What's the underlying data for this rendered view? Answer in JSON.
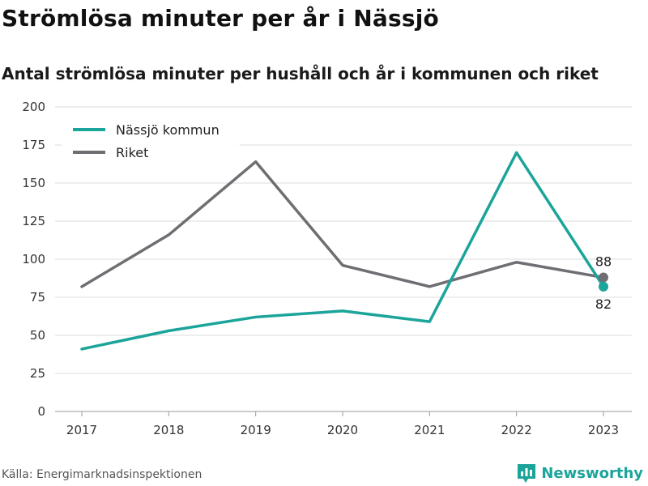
{
  "header": {
    "title": "Strömlösa minuter per år i Nässjö",
    "subtitle": "Antal strömlösa minuter per hushåll och år i kommunen och riket"
  },
  "footer": {
    "source": "Källa: Energimarknadsinspektionen",
    "brand": "Newsworthy",
    "brand_icon": "bar-chart-logo-icon"
  },
  "chart_data": {
    "type": "line",
    "x": [
      "2017",
      "2018",
      "2019",
      "2020",
      "2021",
      "2022",
      "2023"
    ],
    "series": [
      {
        "name": "Nässjö kommun",
        "color": "#1ba49a",
        "values": [
          41,
          53,
          62,
          66,
          59,
          170,
          82
        ]
      },
      {
        "name": "Riket",
        "color": "#6e6e73",
        "values": [
          82,
          116,
          164,
          96,
          82,
          98,
          88
        ]
      }
    ],
    "yticks": [
      0,
      25,
      50,
      75,
      100,
      125,
      150,
      175,
      200
    ],
    "ylim": [
      0,
      200
    ],
    "grid": true,
    "legend_position": "top-left",
    "end_labels": [
      {
        "series": 1,
        "text": "88",
        "placement": "above"
      },
      {
        "series": 0,
        "text": "82",
        "placement": "below"
      }
    ]
  }
}
